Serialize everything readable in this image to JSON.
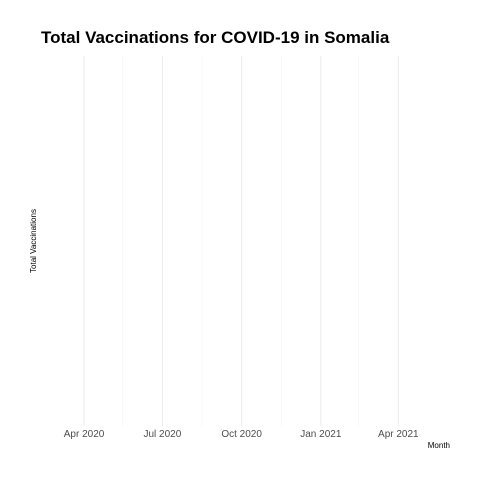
{
  "chart_data": {
    "type": "line",
    "title": "Total Vaccinations for COVID-19 in Somalia",
    "xlabel": "Month",
    "ylabel": "Total Vaccinations",
    "x_tick_labels": [
      "Apr 2020",
      "Jul 2020",
      "Oct 2020",
      "Jan 2021",
      "Apr 2021"
    ],
    "x_ticks": [
      "2020-04-01",
      "2020-07-01",
      "2020-10-01",
      "2021-01-01",
      "2021-04-01"
    ],
    "x_minor_ticks": [
      "2020-05-16",
      "2020-08-16",
      "2020-11-16",
      "2021-02-14"
    ],
    "xlim": [
      "2020-02-11",
      "2021-05-31"
    ],
    "x": [],
    "y": [],
    "grid": true,
    "legend": "none",
    "colors": {
      "grid_major": "#ebebeb",
      "grid_minor": "#f2f2f2",
      "tick_label": "#4d4d4d",
      "text": "#000000",
      "background": "#ffffff"
    }
  }
}
